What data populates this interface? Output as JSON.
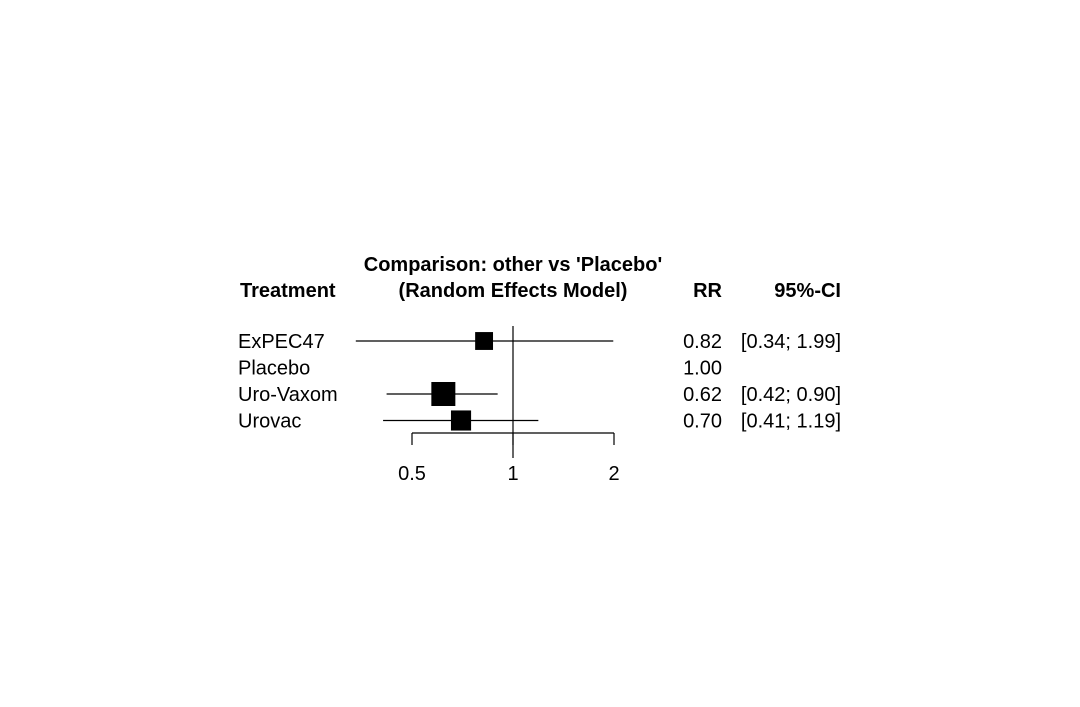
{
  "chart_data": {
    "type": "forest",
    "title": "Comparison: other vs 'Placebo'",
    "subtitle": "(Random Effects Model)",
    "columns": {
      "treatment": "Treatment",
      "estimate": "RR",
      "ci": "95%-CI"
    },
    "x_scale": "log",
    "x_reference": 1,
    "x_ticks": [
      {
        "value": 0.5,
        "label": "0.5"
      },
      {
        "value": 1,
        "label": "1"
      },
      {
        "value": 2,
        "label": "2"
      }
    ],
    "rows": [
      {
        "treatment": "ExPEC47",
        "rr": 0.82,
        "lower": 0.34,
        "upper": 1.99,
        "weight": 0.35,
        "rr_text": "0.82",
        "ci_text": "[0.34; 1.99]"
      },
      {
        "treatment": "Placebo",
        "rr": null,
        "lower": null,
        "upper": null,
        "weight": 0,
        "rr_text": "1.00",
        "ci_text": ""
      },
      {
        "treatment": "Uro-Vaxom",
        "rr": 0.62,
        "lower": 0.42,
        "upper": 0.9,
        "weight": 1.0,
        "rr_text": "0.62",
        "ci_text": "[0.42; 0.90]"
      },
      {
        "treatment": "Urovac",
        "rr": 0.7,
        "lower": 0.41,
        "upper": 1.19,
        "weight": 0.55,
        "rr_text": "0.70",
        "ci_text": "[0.41; 1.19]"
      }
    ]
  }
}
